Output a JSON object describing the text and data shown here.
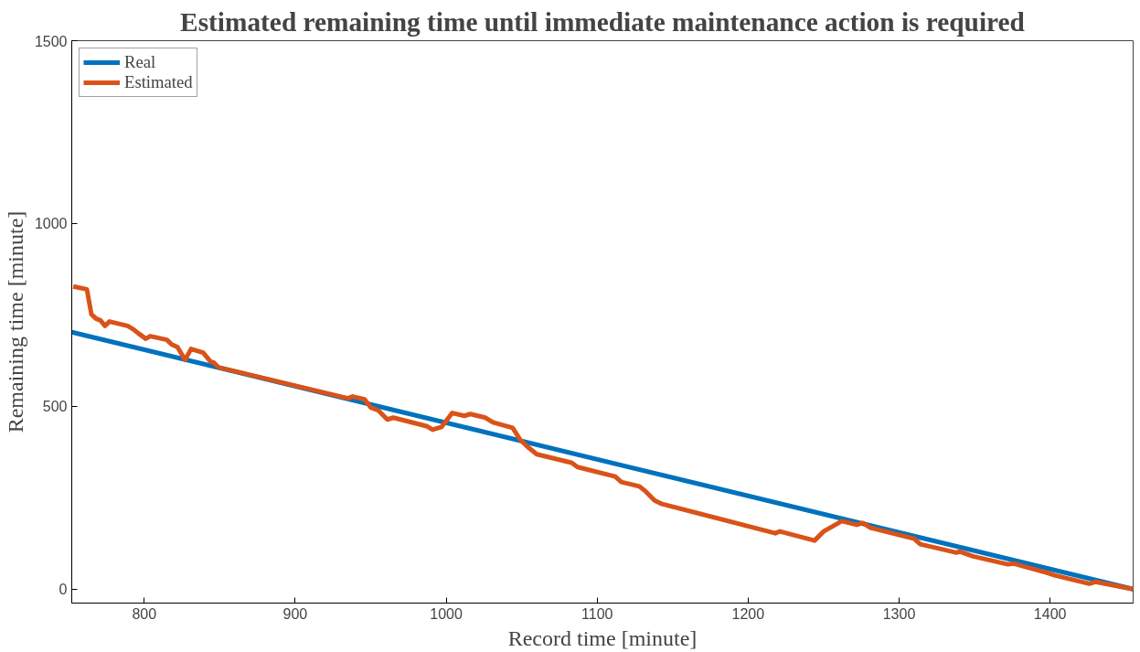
{
  "chart_data": {
    "type": "line",
    "title": "Estimated remaining time until immediate maintenance action is required",
    "xlabel": "Record time [minute]",
    "ylabel": "Remaining time [minute]",
    "xlim": [
      752,
      1455
    ],
    "ylim": [
      -38,
      1500
    ],
    "xticks": [
      800,
      900,
      1000,
      1100,
      1200,
      1300,
      1400
    ],
    "yticks": [
      0,
      500,
      1000,
      1500
    ],
    "grid": false,
    "legend": "top left",
    "line_style": "solid",
    "marker": "none",
    "series": [
      {
        "name": "Real",
        "color": "#0072bd",
        "x": [
          752,
          1455
        ],
        "values": [
          703,
          0
        ]
      },
      {
        "name": "Estimated",
        "color": "#d95319",
        "x": [
          753,
          762,
          765,
          768,
          771,
          774,
          777,
          789,
          793,
          796,
          801,
          804,
          815,
          818,
          822,
          827,
          831,
          839,
          844,
          846,
          849,
          935,
          938,
          946,
          950,
          955,
          961,
          965,
          987,
          991,
          997,
          1004,
          1012,
          1016,
          1026,
          1031,
          1044,
          1049,
          1054,
          1060,
          1083,
          1087,
          1112,
          1116,
          1128,
          1132,
          1138,
          1143,
          1218,
          1221,
          1244,
          1250,
          1262,
          1272,
          1276,
          1281,
          1310,
          1314,
          1338,
          1340,
          1349,
          1372,
          1376,
          1398,
          1403,
          1426,
          1430,
          1455
        ],
        "values": [
          828,
          820,
          752,
          740,
          735,
          720,
          732,
          720,
          710,
          700,
          685,
          692,
          682,
          670,
          662,
          627,
          657,
          647,
          622,
          620,
          607,
          522,
          527,
          519,
          497,
          489,
          464,
          469,
          446,
          436,
          444,
          482,
          474,
          479,
          469,
          456,
          441,
          409,
          389,
          369,
          346,
          334,
          308,
          293,
          281,
          268,
          243,
          233,
          153,
          158,
          133,
          158,
          186,
          176,
          181,
          168,
          138,
          123,
          100,
          103,
          90,
          68,
          70,
          45,
          38,
          15,
          20,
          0
        ]
      }
    ]
  }
}
